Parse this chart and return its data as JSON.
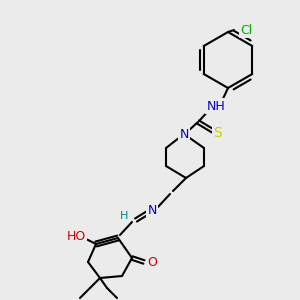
{
  "bg_color": "#ebebeb",
  "bond_color": "#000000",
  "bond_width": 1.5,
  "font_size": 9,
  "colors": {
    "N": "#0000cc",
    "O": "#cc0000",
    "S": "#cccc00",
    "Cl": "#00aa00",
    "H": "#008888",
    "C": "#000000"
  },
  "figsize": [
    3.0,
    3.0
  ],
  "dpi": 100
}
